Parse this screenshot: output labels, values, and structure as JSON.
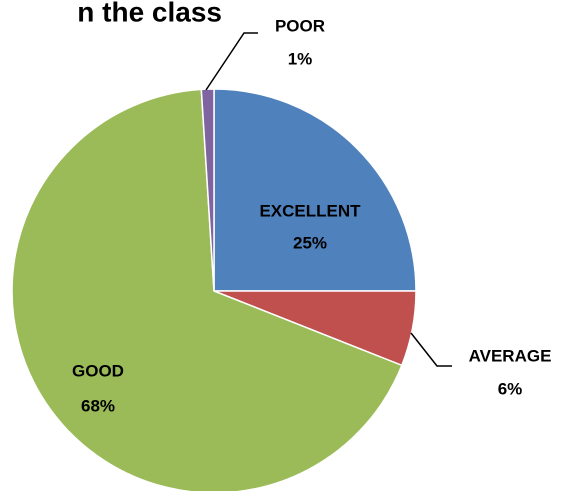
{
  "chart_data": {
    "type": "pie",
    "title": "n the class",
    "categories": [
      "EXCELLENT",
      "AVERAGE",
      "GOOD",
      "POOR"
    ],
    "values": [
      25,
      6,
      68,
      1
    ],
    "value_labels": [
      "25%",
      "6%",
      "68%",
      "1%"
    ],
    "colors": [
      "#4f81bd",
      "#c0504d",
      "#9bbb59",
      "#8064a2"
    ]
  }
}
